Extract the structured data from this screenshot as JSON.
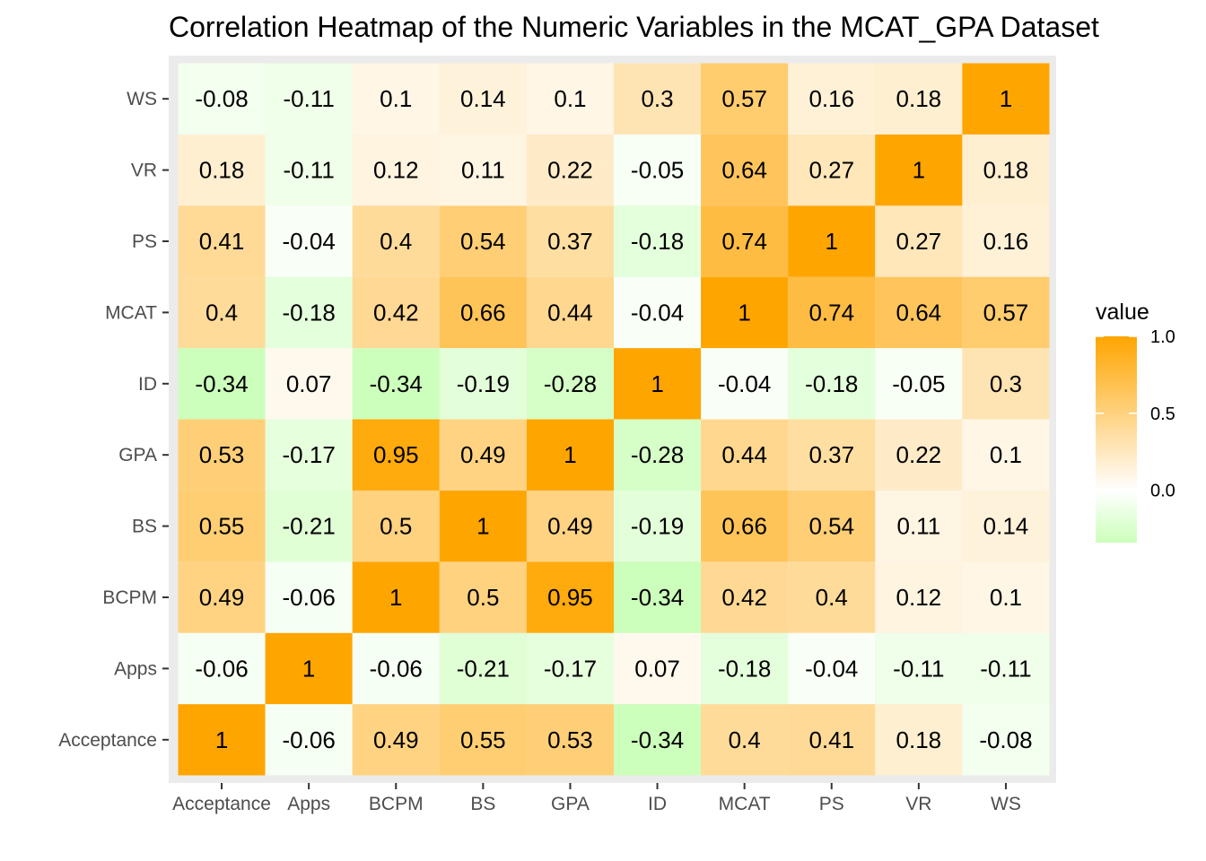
{
  "chart_data": {
    "type": "heatmap",
    "title": "Correlation Heatmap of the Numeric Variables in the MCAT_GPA Dataset",
    "xlabel": "",
    "ylabel": "",
    "x_categories": [
      "Acceptance",
      "Apps",
      "BCPM",
      "BS",
      "GPA",
      "ID",
      "MCAT",
      "PS",
      "VR",
      "WS"
    ],
    "y_categories": [
      "Acceptance",
      "Apps",
      "BCPM",
      "BS",
      "GPA",
      "ID",
      "MCAT",
      "PS",
      "VR",
      "WS"
    ],
    "values": [
      [
        1,
        -0.06,
        0.49,
        0.55,
        0.53,
        -0.34,
        0.4,
        0.41,
        0.18,
        -0.08
      ],
      [
        -0.06,
        1,
        -0.06,
        -0.21,
        -0.17,
        0.07,
        -0.18,
        -0.04,
        -0.11,
        -0.11
      ],
      [
        0.49,
        -0.06,
        1,
        0.5,
        0.95,
        -0.34,
        0.42,
        0.4,
        0.12,
        0.1
      ],
      [
        0.55,
        -0.21,
        0.5,
        1,
        0.49,
        -0.19,
        0.66,
        0.54,
        0.11,
        0.14
      ],
      [
        0.53,
        -0.17,
        0.95,
        0.49,
        1,
        -0.28,
        0.44,
        0.37,
        0.22,
        0.1
      ],
      [
        -0.34,
        0.07,
        -0.34,
        -0.19,
        -0.28,
        1,
        -0.04,
        -0.18,
        -0.05,
        0.3
      ],
      [
        0.4,
        -0.18,
        0.42,
        0.66,
        0.44,
        -0.04,
        1,
        0.74,
        0.64,
        0.57
      ],
      [
        0.41,
        -0.04,
        0.4,
        0.54,
        0.37,
        -0.18,
        0.74,
        1,
        0.27,
        0.16
      ],
      [
        0.18,
        -0.11,
        0.12,
        0.11,
        0.22,
        -0.05,
        0.64,
        0.27,
        1,
        0.18
      ],
      [
        -0.08,
        -0.11,
        0.1,
        0.14,
        0.1,
        0.3,
        0.57,
        0.16,
        0.18,
        1
      ]
    ],
    "color_scale": {
      "low": "#ccffbb",
      "mid": "#ffffff",
      "high": "#ffa500",
      "midpoint": 0
    },
    "value_range": [
      -0.34,
      1
    ],
    "legend": {
      "title": "value",
      "ticks": [
        1.0,
        0.5,
        0.0
      ],
      "tick_labels": [
        "1.0",
        "0.5",
        "0.0"
      ],
      "position": "right"
    },
    "panel_background": "#ebebeb",
    "grid": false
  }
}
